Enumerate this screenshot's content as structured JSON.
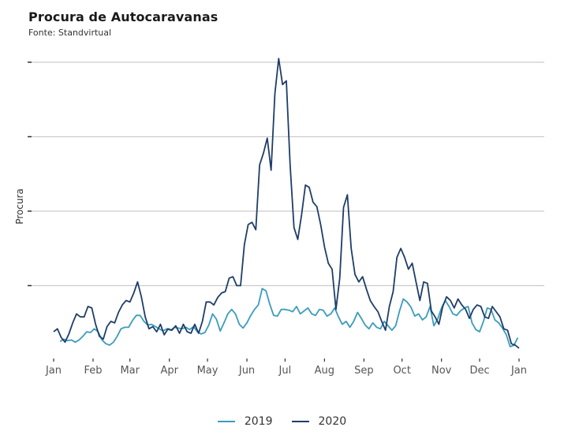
{
  "chart_data": {
    "type": "line",
    "title": "Procura de Autocaravanas",
    "subtitle": "Fonte: Standvirtual",
    "xlabel": "",
    "ylabel": "Procura",
    "x_unit": "day of year",
    "x_ticks": [
      {
        "day": 0,
        "label": "Jan"
      },
      {
        "day": 31,
        "label": "Feb"
      },
      {
        "day": 60,
        "label": "Mar"
      },
      {
        "day": 91,
        "label": "Apr"
      },
      {
        "day": 121,
        "label": "May"
      },
      {
        "day": 152,
        "label": "Jun"
      },
      {
        "day": 182,
        "label": "Jul"
      },
      {
        "day": 213,
        "label": "Aug"
      },
      {
        "day": 244,
        "label": "Sep"
      },
      {
        "day": 274,
        "label": "Oct"
      },
      {
        "day": 305,
        "label": "Nov"
      },
      {
        "day": 335,
        "label": "Dec"
      },
      {
        "day": 366,
        "label": "Jan"
      }
    ],
    "y_ticks": [
      1,
      2,
      3,
      4
    ],
    "y_tick_labels_visible": false,
    "xlim": [
      -7,
      372
    ],
    "ylim": [
      0,
      4.1
    ],
    "grid": "horizontal",
    "legend_position": "bottom",
    "series": [
      {
        "name": "2019",
        "color": "#3a9cbc",
        "x": [
          5,
          8,
          11,
          14,
          17,
          20,
          23,
          26,
          29,
          32,
          35,
          38,
          41,
          44,
          47,
          50,
          53,
          56,
          59,
          62,
          65,
          68,
          71,
          74,
          77,
          80,
          83,
          86,
          89,
          92,
          95,
          98,
          101,
          104,
          107,
          110,
          113,
          116,
          119,
          122,
          125,
          128,
          131,
          134,
          137,
          140,
          143,
          146,
          149,
          152,
          155,
          158,
          161,
          164,
          167,
          170,
          173,
          176,
          179,
          182,
          185,
          188,
          191,
          194,
          197,
          200,
          203,
          206,
          209,
          212,
          215,
          218,
          221,
          224,
          227,
          230,
          233,
          236,
          239,
          242,
          245,
          248,
          251,
          254,
          257,
          260,
          263,
          266,
          269,
          272,
          275,
          278,
          281,
          284,
          287,
          290,
          293,
          296,
          299,
          302,
          305,
          308,
          311,
          314,
          317,
          320,
          323,
          326,
          329,
          332,
          335,
          338,
          341,
          344,
          347,
          350,
          353,
          356,
          359,
          362,
          365
        ],
        "values": [
          0.25,
          0.28,
          0.26,
          0.27,
          0.24,
          0.27,
          0.32,
          0.38,
          0.37,
          0.42,
          0.38,
          0.27,
          0.22,
          0.2,
          0.24,
          0.32,
          0.42,
          0.44,
          0.44,
          0.53,
          0.6,
          0.6,
          0.52,
          0.47,
          0.48,
          0.45,
          0.42,
          0.39,
          0.42,
          0.4,
          0.44,
          0.43,
          0.42,
          0.44,
          0.41,
          0.45,
          0.38,
          0.35,
          0.37,
          0.47,
          0.62,
          0.55,
          0.39,
          0.5,
          0.62,
          0.68,
          0.62,
          0.48,
          0.43,
          0.5,
          0.6,
          0.68,
          0.74,
          0.96,
          0.93,
          0.75,
          0.6,
          0.59,
          0.68,
          0.68,
          0.67,
          0.65,
          0.72,
          0.62,
          0.66,
          0.7,
          0.62,
          0.6,
          0.68,
          0.67,
          0.59,
          0.62,
          0.7,
          0.58,
          0.48,
          0.52,
          0.44,
          0.52,
          0.64,
          0.56,
          0.47,
          0.42,
          0.5,
          0.44,
          0.42,
          0.52,
          0.46,
          0.4,
          0.46,
          0.66,
          0.82,
          0.78,
          0.71,
          0.59,
          0.62,
          0.54,
          0.58,
          0.72,
          0.46,
          0.55,
          0.7,
          0.8,
          0.72,
          0.62,
          0.6,
          0.66,
          0.7,
          0.72,
          0.5,
          0.41,
          0.38,
          0.52,
          0.7,
          0.68,
          0.54,
          0.5,
          0.43,
          0.34,
          0.18,
          0.2,
          0.3
        ]
      },
      {
        "name": "2020",
        "color": "#1f3d68",
        "x": [
          0,
          3,
          6,
          9,
          12,
          15,
          18,
          21,
          24,
          27,
          30,
          33,
          36,
          39,
          42,
          45,
          48,
          51,
          54,
          57,
          60,
          63,
          66,
          69,
          72,
          75,
          78,
          81,
          84,
          87,
          90,
          93,
          96,
          99,
          102,
          105,
          108,
          111,
          114,
          117,
          120,
          123,
          126,
          129,
          132,
          135,
          138,
          141,
          144,
          147,
          150,
          153,
          156,
          159,
          162,
          165,
          168,
          171,
          174,
          177,
          180,
          183,
          186,
          189,
          192,
          195,
          198,
          201,
          204,
          207,
          210,
          213,
          216,
          219,
          222,
          225,
          228,
          231,
          234,
          237,
          240,
          243,
          246,
          249,
          252,
          255,
          258,
          261,
          264,
          267,
          270,
          273,
          276,
          279,
          282,
          285,
          288,
          291,
          294,
          297,
          300,
          303,
          306,
          309,
          312,
          315,
          318,
          321,
          324,
          327,
          330,
          333,
          336,
          339,
          342,
          345,
          348,
          351,
          354,
          357,
          360,
          363,
          366
        ],
        "values": [
          0.38,
          0.42,
          0.3,
          0.24,
          0.35,
          0.5,
          0.62,
          0.58,
          0.58,
          0.72,
          0.7,
          0.48,
          0.32,
          0.28,
          0.45,
          0.52,
          0.5,
          0.64,
          0.74,
          0.8,
          0.78,
          0.9,
          1.05,
          0.85,
          0.58,
          0.42,
          0.45,
          0.38,
          0.48,
          0.34,
          0.42,
          0.4,
          0.46,
          0.36,
          0.48,
          0.38,
          0.36,
          0.48,
          0.36,
          0.52,
          0.78,
          0.78,
          0.74,
          0.84,
          0.9,
          0.92,
          1.1,
          1.12,
          1.0,
          1.0,
          1.55,
          1.82,
          1.85,
          1.75,
          2.62,
          2.78,
          2.98,
          2.55,
          3.58,
          4.05,
          3.7,
          3.75,
          2.62,
          1.78,
          1.62,
          1.95,
          2.35,
          2.32,
          2.12,
          2.06,
          1.82,
          1.52,
          1.3,
          1.22,
          0.68,
          1.1,
          2.05,
          2.22,
          1.5,
          1.15,
          1.05,
          1.12,
          0.95,
          0.8,
          0.72,
          0.65,
          0.52,
          0.4,
          0.72,
          0.92,
          1.38,
          1.5,
          1.38,
          1.22,
          1.3,
          1.05,
          0.8,
          1.05,
          1.03,
          0.66,
          0.58,
          0.48,
          0.72,
          0.85,
          0.8,
          0.7,
          0.82,
          0.74,
          0.68,
          0.56,
          0.68,
          0.74,
          0.72,
          0.58,
          0.56,
          0.72,
          0.65,
          0.58,
          0.42,
          0.4,
          0.22,
          0.2,
          0.16
        ]
      }
    ]
  }
}
